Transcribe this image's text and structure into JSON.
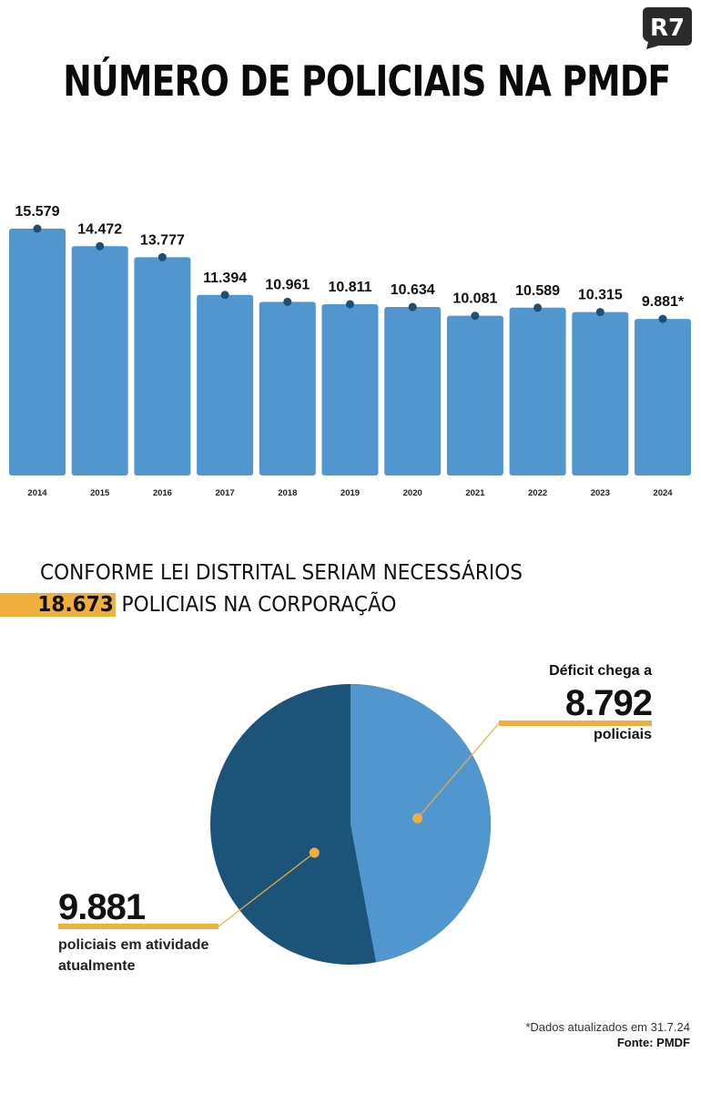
{
  "brand": {
    "logo_text": "R7"
  },
  "title": "NÚMERO DE POLICIAIS NA PMDF",
  "subtitle": {
    "line1": "CONFORME LEI DISTRITAL SERIAM NECESSÁRIOS",
    "highlight": "18.673",
    "line2_rest": " POLICIAIS NA CORPORAÇÃO"
  },
  "colors": {
    "bar": "#5296cf",
    "dot": "#1c4f74",
    "pie_dark": "#1c5479",
    "pie_light": "#5296cf",
    "accent": "#f0ae3c"
  },
  "chart_data": [
    {
      "type": "bar",
      "title": "NÚMERO DE POLICIAIS NA PMDF",
      "categories": [
        "2014",
        "2015",
        "2016",
        "2017",
        "2018",
        "2019",
        "2020",
        "2021",
        "2022",
        "2023",
        "2024"
      ],
      "values": [
        15579,
        14472,
        13777,
        11394,
        10961,
        10811,
        10634,
        10081,
        10589,
        10315,
        9881
      ],
      "value_labels": [
        "15.579",
        "14.472",
        "13.777",
        "11.394",
        "10.961",
        "10.811",
        "10.634",
        "10.081",
        "10.589",
        "10.315",
        "9.881*"
      ],
      "grid": false
    },
    {
      "type": "pie",
      "slices": [
        {
          "name": "policiais em atividade atualmente",
          "value": 9881,
          "label": "9.881"
        },
        {
          "name": "Déficit",
          "value": 8792,
          "label": "8.792"
        }
      ]
    }
  ],
  "pie_labels": {
    "deficit_prefix": "Déficit chega a",
    "deficit_value": "8.792",
    "deficit_suffix": "policiais",
    "active_value": "9.881",
    "active_text": "policiais em atividade atualmente"
  },
  "footer": {
    "note": "*Dados atualizados em 31.7.24",
    "source": "Fonte: PMDF"
  }
}
